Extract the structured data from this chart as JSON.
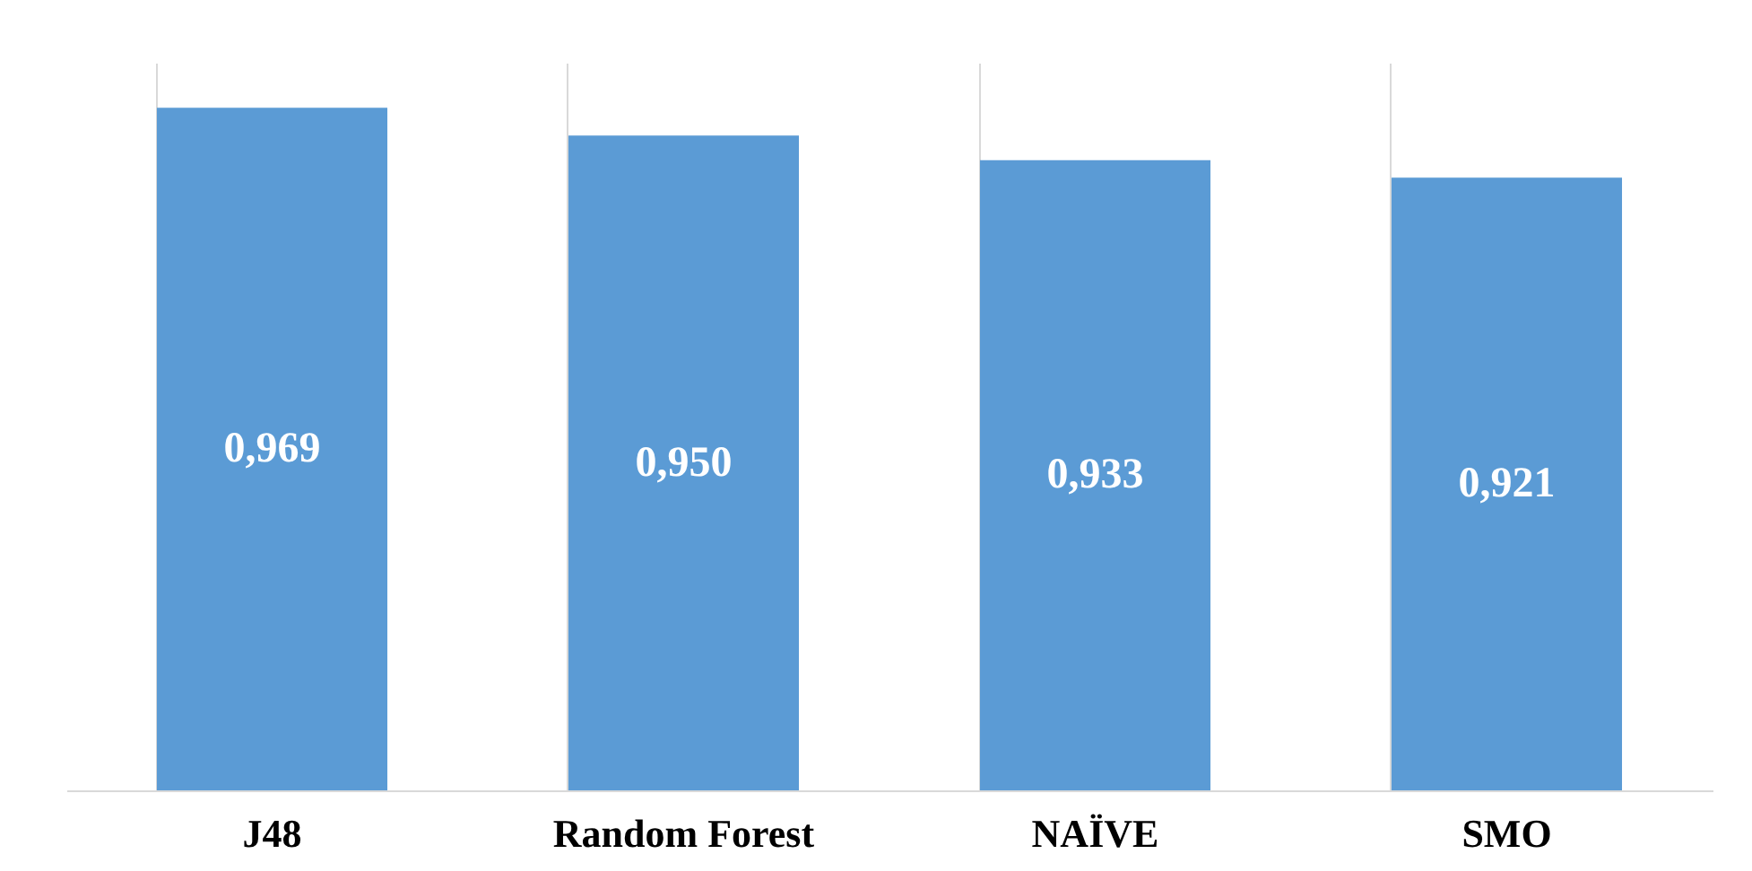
{
  "chart_data": {
    "type": "bar",
    "categories": [
      "J48",
      "Random Forest",
      "NAÏVE",
      "SMO"
    ],
    "values": [
      0.969,
      0.95,
      0.933,
      0.921
    ],
    "value_labels": [
      "0,969",
      "0,950",
      "0,933",
      "0,921"
    ],
    "color": "#5b9bd5",
    "ylim": [
      0.5,
      1.0
    ],
    "tick_labels": "x",
    "grid": "x"
  }
}
